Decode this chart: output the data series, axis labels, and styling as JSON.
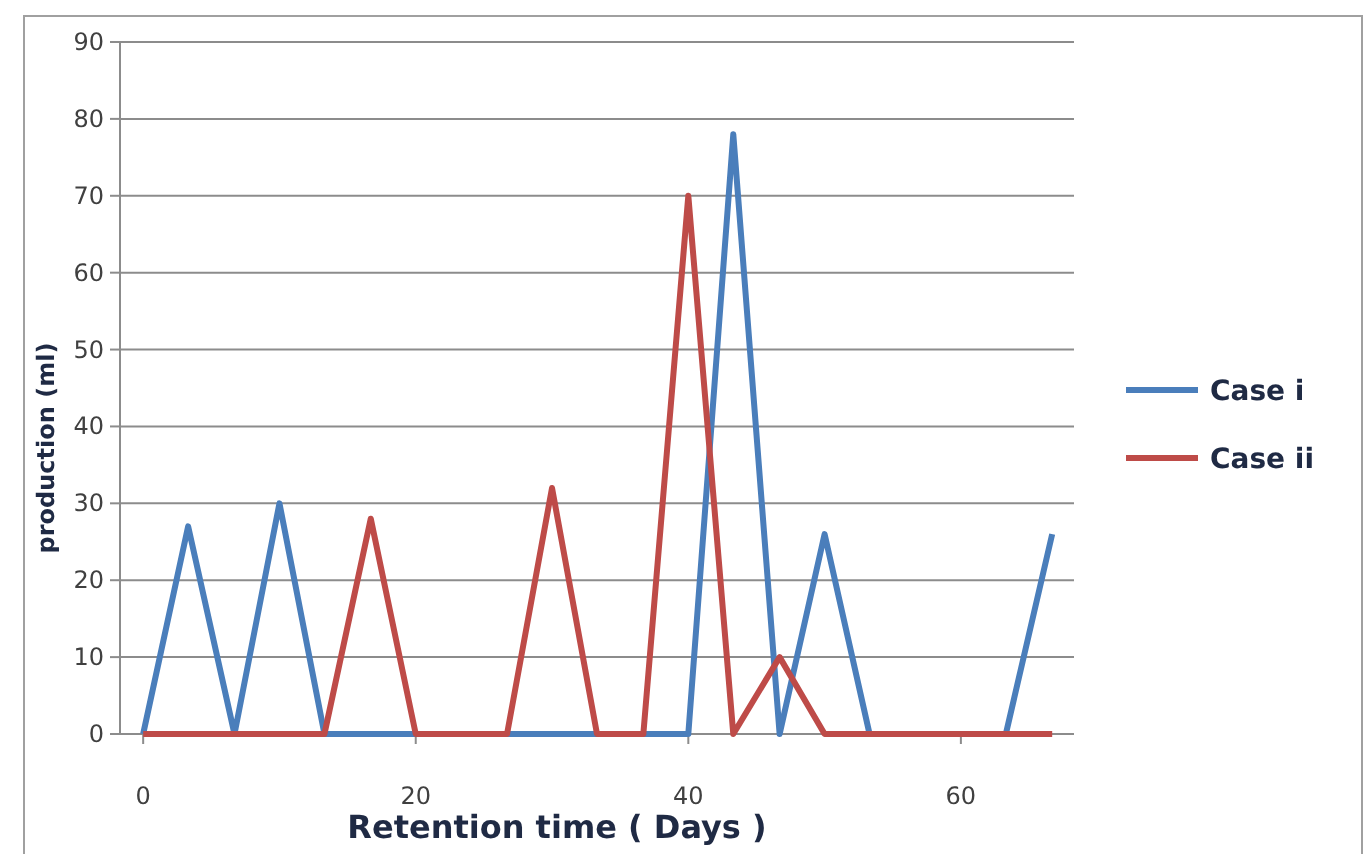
{
  "chart_data": {
    "type": "line",
    "xlabel": "Retention time ( Days )",
    "ylabel": "production (ml)",
    "x": [
      0,
      3.3,
      6.7,
      10,
      13.3,
      16.7,
      20,
      23.3,
      26.7,
      30,
      33.3,
      36.7,
      40,
      43.3,
      46.7,
      50,
      53.3,
      56.7,
      60,
      63.3,
      66.7
    ],
    "series": [
      {
        "name": "Case i",
        "color": "#4a7ebb",
        "values": [
          0,
          27,
          0,
          30,
          0,
          0,
          0,
          0,
          0,
          0,
          0,
          0,
          0,
          78,
          0,
          26,
          0,
          0,
          0,
          0,
          26
        ]
      },
      {
        "name": "Case ii",
        "color": "#be4b48",
        "values": [
          0,
          0,
          0,
          0,
          0,
          28,
          0,
          0,
          0,
          32,
          0,
          0,
          70,
          0,
          10,
          0,
          0,
          0,
          0,
          0,
          0
        ]
      }
    ],
    "xlim": [
      -1.7,
      68.3
    ],
    "xticks": [
      0,
      20,
      40,
      60
    ],
    "ylim": [
      0,
      90
    ],
    "yticks": [
      0,
      10,
      20,
      30,
      40,
      50,
      60,
      70,
      80,
      90
    ],
    "grid": "y",
    "legend": "right",
    "marker": "none",
    "line_style": "solid"
  }
}
